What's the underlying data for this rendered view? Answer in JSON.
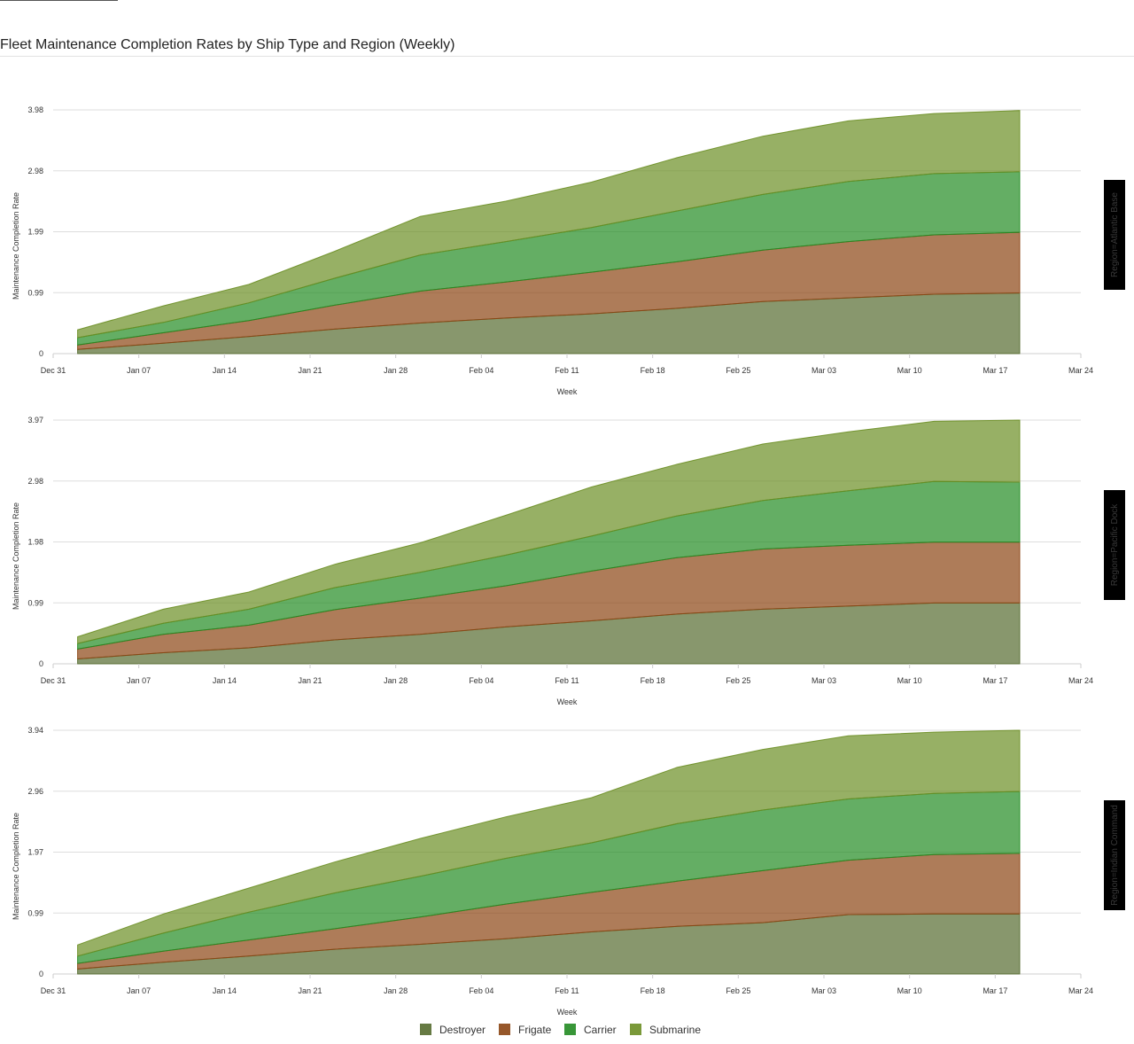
{
  "page": {
    "title": "Fleet Maintenance Completion Rates by Ship Type and Region (Weekly)"
  },
  "chart_data": {
    "type": "area",
    "stacked": true,
    "xlabel": "Week",
    "ylabel": "Maintenance Completion Rate",
    "x_ticks": [
      "Dec 31",
      "Jan 07",
      "Jan 14",
      "Jan 21",
      "Jan 28",
      "Feb 04",
      "Feb 11",
      "Feb 18",
      "Feb 25",
      "Mar 03",
      "Mar 10",
      "Mar 17",
      "Mar 24"
    ],
    "x": [
      "Jan 02",
      "Jan 09",
      "Jan 16",
      "Jan 23",
      "Jan 30",
      "Feb 06",
      "Feb 13",
      "Feb 20",
      "Feb 27",
      "Mar 05",
      "Mar 12",
      "Mar 19"
    ],
    "legend": {
      "placement": "bottom-center",
      "items": [
        {
          "name": "Destroyer",
          "color": "#556b2f"
        },
        {
          "name": "Frigate",
          "color": "#8b4513"
        },
        {
          "name": "Carrier",
          "color": "#228b22"
        },
        {
          "name": "Submarine",
          "color": "#6b8e23"
        }
      ]
    },
    "grid": true,
    "facets": [
      {
        "label": "Region=Atlantic Base",
        "y_ticks": [
          "0",
          "0.99",
          "1.99",
          "2.98",
          "3.98"
        ],
        "ylim": [
          0,
          3.98
        ],
        "series": [
          {
            "name": "Destroyer",
            "values": [
              0.07,
              0.17,
              0.28,
              0.4,
              0.5,
              0.58,
              0.65,
              0.74,
              0.85,
              0.91,
              0.97,
              0.99
            ]
          },
          {
            "name": "Frigate",
            "values": [
              0.07,
              0.17,
              0.26,
              0.39,
              0.52,
              0.59,
              0.68,
              0.76,
              0.84,
              0.92,
              0.97,
              0.99
            ]
          },
          {
            "name": "Carrier",
            "values": [
              0.12,
              0.17,
              0.29,
              0.44,
              0.59,
              0.66,
              0.73,
              0.83,
              0.91,
              0.98,
              1.0,
              0.99
            ]
          },
          {
            "name": "Submarine",
            "values": [
              0.13,
              0.27,
              0.3,
              0.44,
              0.63,
              0.66,
              0.74,
              0.87,
              0.95,
              0.99,
              0.98,
              1.0
            ]
          }
        ]
      },
      {
        "label": "Region=Pacific Dock",
        "y_ticks": [
          "0",
          "0.99",
          "1.98",
          "2.98",
          "3.97"
        ],
        "ylim": [
          0,
          3.97
        ],
        "series": [
          {
            "name": "Destroyer",
            "values": [
              0.08,
              0.18,
              0.26,
              0.39,
              0.48,
              0.6,
              0.7,
              0.81,
              0.89,
              0.94,
              0.99,
              0.99
            ]
          },
          {
            "name": "Frigate",
            "values": [
              0.16,
              0.3,
              0.37,
              0.49,
              0.59,
              0.67,
              0.81,
              0.92,
              0.98,
              0.99,
              0.99,
              0.99
            ]
          },
          {
            "name": "Carrier",
            "values": [
              0.09,
              0.18,
              0.26,
              0.36,
              0.42,
              0.5,
              0.57,
              0.68,
              0.79,
              0.89,
              0.99,
              0.98
            ]
          },
          {
            "name": "Submarine",
            "values": [
              0.11,
              0.23,
              0.28,
              0.38,
              0.48,
              0.65,
              0.8,
              0.84,
              0.92,
              0.96,
              0.98,
              1.01
            ]
          }
        ]
      },
      {
        "label": "Region=Indian Command",
        "y_ticks": [
          "0",
          "0.99",
          "1.97",
          "2.96",
          "3.94"
        ],
        "ylim": [
          0,
          3.94
        ],
        "series": [
          {
            "name": "Destroyer",
            "values": [
              0.08,
              0.19,
              0.29,
              0.4,
              0.48,
              0.57,
              0.68,
              0.77,
              0.83,
              0.96,
              0.97,
              0.97
            ]
          },
          {
            "name": "Frigate",
            "values": [
              0.09,
              0.18,
              0.26,
              0.33,
              0.44,
              0.56,
              0.64,
              0.73,
              0.84,
              0.88,
              0.96,
              0.98
            ]
          },
          {
            "name": "Carrier",
            "values": [
              0.12,
              0.29,
              0.45,
              0.58,
              0.66,
              0.74,
              0.8,
              0.93,
              0.98,
              0.99,
              0.99,
              1.0
            ]
          },
          {
            "name": "Submarine",
            "values": [
              0.18,
              0.31,
              0.39,
              0.5,
              0.61,
              0.67,
              0.73,
              0.91,
              0.98,
              1.02,
              0.99,
              0.99
            ]
          }
        ]
      }
    ]
  }
}
